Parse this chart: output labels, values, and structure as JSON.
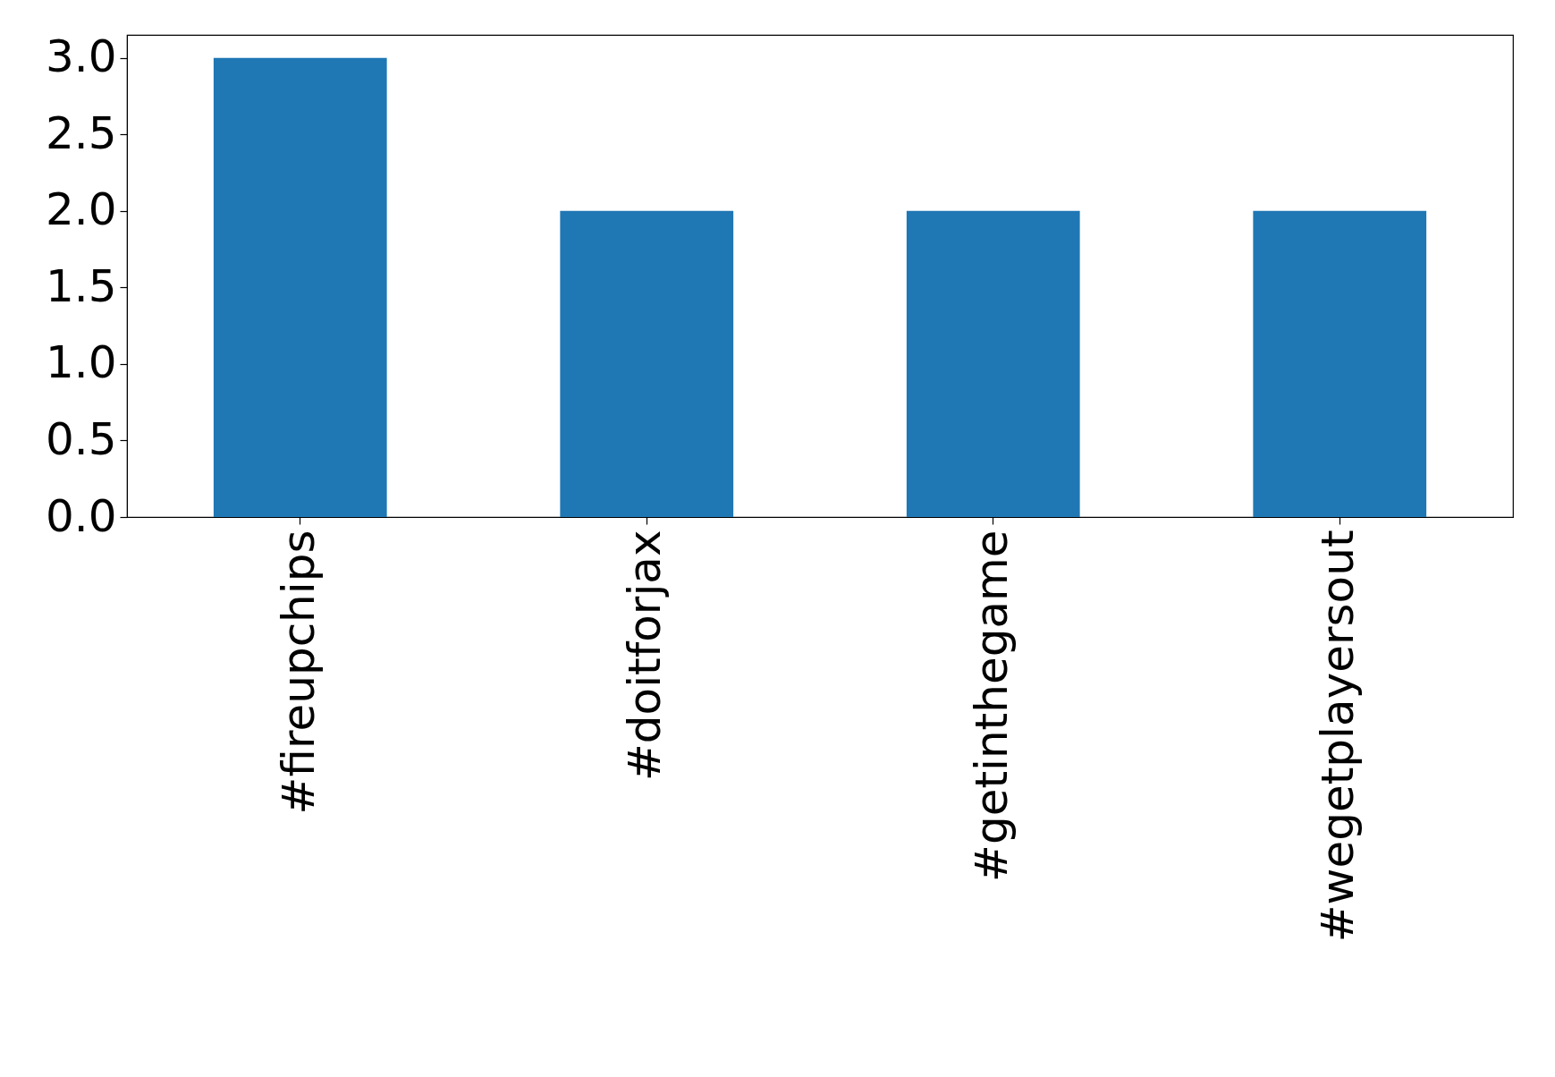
{
  "chart_data": {
    "type": "bar",
    "categories": [
      "#fireupchips",
      "#doitforjax",
      "#getinthegame",
      "#wegetplayersout"
    ],
    "values": [
      3,
      2,
      2,
      2
    ],
    "color": "#1f77b4",
    "ylim": [
      0,
      3.15
    ],
    "yticks": [
      {
        "value": 0,
        "label": "0.0"
      },
      0.5,
      {
        "value": 1,
        "label": "1.0"
      },
      1.5,
      {
        "value": 2,
        "label": "2.0"
      },
      2.5,
      {
        "value": 3,
        "label": "3.0"
      }
    ],
    "grid": false
  }
}
